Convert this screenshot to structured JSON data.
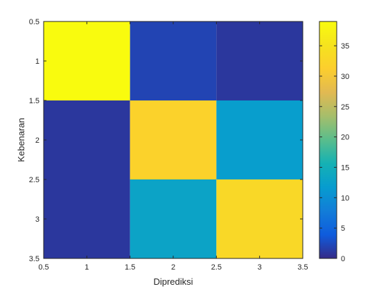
{
  "chart_data": {
    "type": "heatmap",
    "xlabel": "Diprediksi",
    "ylabel": "Kebenaran",
    "x_ticks": [
      "0.5",
      "1",
      "1.5",
      "2",
      "2.5",
      "3",
      "3.5"
    ],
    "y_ticks": [
      "0.5",
      "1",
      "1.5",
      "2",
      "2.5",
      "3",
      "3.5"
    ],
    "xlim": [
      0.5,
      3.5
    ],
    "ylim": [
      0.5,
      3.5
    ],
    "y_direction": "reverse",
    "x": [
      1,
      2,
      3
    ],
    "y": [
      1,
      2,
      3
    ],
    "values": [
      [
        39,
        2,
        1
      ],
      [
        1,
        32,
        12
      ],
      [
        1,
        13,
        33
      ]
    ],
    "colorbar": {
      "range": [
        0,
        39
      ],
      "ticks": [
        "0",
        "5",
        "10",
        "15",
        "20",
        "25",
        "30",
        "35"
      ],
      "colormap": "parula"
    },
    "grid": false
  }
}
